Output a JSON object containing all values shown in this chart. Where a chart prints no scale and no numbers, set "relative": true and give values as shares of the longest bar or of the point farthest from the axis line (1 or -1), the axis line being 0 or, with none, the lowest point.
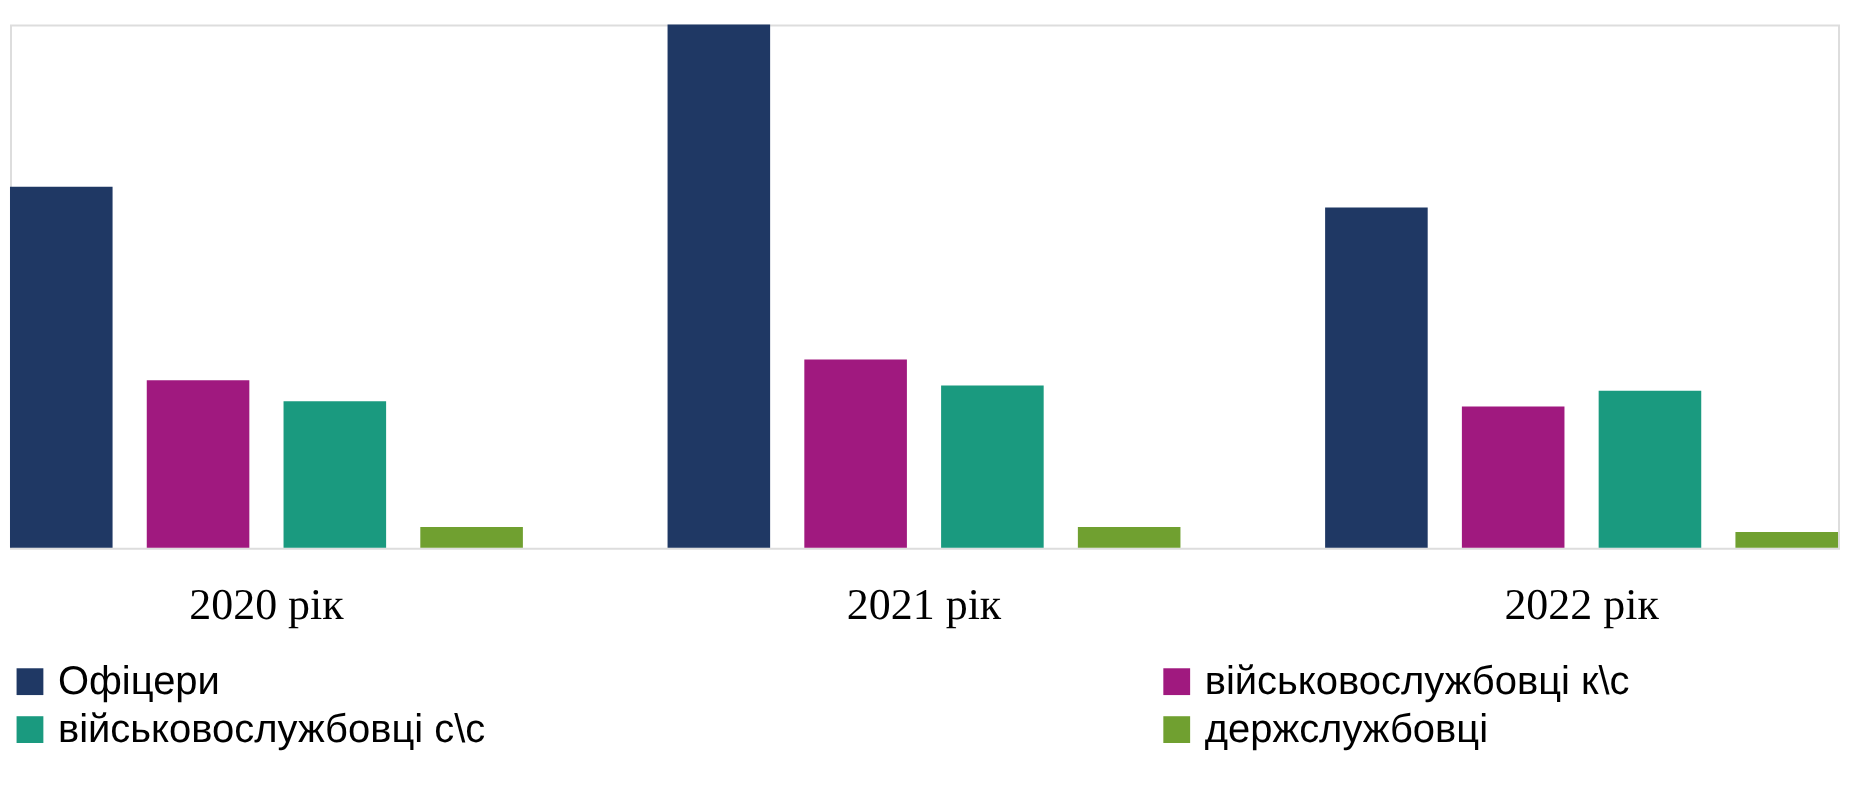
{
  "chart_data": {
    "type": "bar",
    "relative": true,
    "categories": [
      "2020 рік",
      "2021 рік",
      "2022 рік"
    ],
    "series": [
      {
        "name": "Офіцери",
        "color": "#1f3864",
        "values": [
          0.69,
          1.0,
          0.65
        ]
      },
      {
        "name": "військовослужбовці  к\\с",
        "color": "#a0197f",
        "values": [
          0.32,
          0.36,
          0.27
        ]
      },
      {
        "name": "військовослужбовці  с\\с",
        "color": "#1a9a7f",
        "values": [
          0.28,
          0.31,
          0.3
        ]
      },
      {
        "name": "держслужбовці",
        "color": "#70a030",
        "values": [
          0.04,
          0.04,
          0.03
        ]
      }
    ],
    "legend": "bottom"
  }
}
